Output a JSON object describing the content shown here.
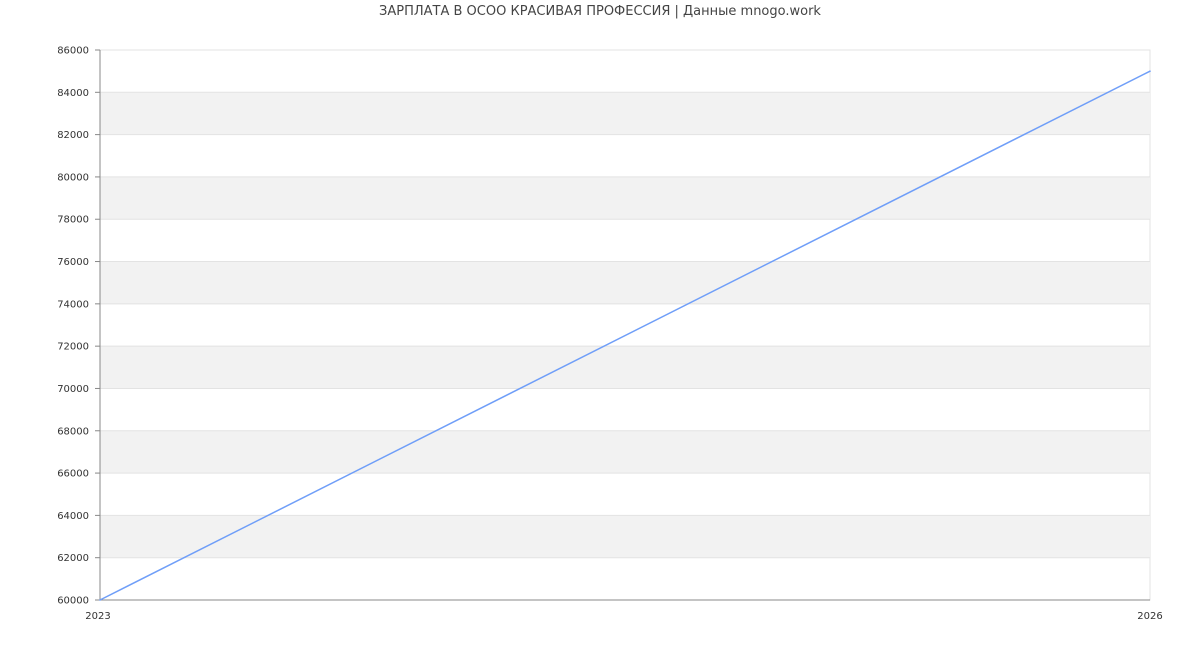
{
  "chart_data": {
    "type": "line",
    "title": "ЗАРПЛАТА В ОСОО КРАСИВАЯ ПРОФЕССИЯ | Данные mnogo.work",
    "x": [
      2023,
      2026
    ],
    "x_tick_labels": [
      "2023",
      "2026"
    ],
    "series": [
      {
        "values": [
          60000,
          85000
        ],
        "color": "#6f9ef8"
      }
    ],
    "ylim": [
      60000,
      86000
    ],
    "y_ticks": [
      60000,
      62000,
      64000,
      66000,
      68000,
      70000,
      72000,
      74000,
      76000,
      78000,
      80000,
      82000,
      84000,
      86000
    ],
    "grid": true,
    "band_color": "#f2f2f2",
    "xlabel": "",
    "ylabel": ""
  }
}
